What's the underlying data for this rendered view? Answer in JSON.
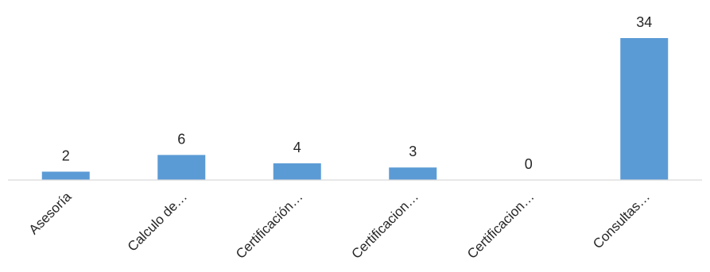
{
  "chart_data": {
    "type": "bar",
    "categories": [
      "Asesoría",
      "Calculo de…",
      "Certificación…",
      "Certificacion…",
      "Certificacion…",
      "Consultas…"
    ],
    "values": [
      2,
      6,
      4,
      3,
      0,
      34
    ],
    "title": "",
    "xlabel": "",
    "ylabel": "",
    "ylim": [
      0,
      34
    ],
    "grid": false,
    "legend": "none",
    "data_labels": true,
    "colors": {
      "bar": "#5b9bd5",
      "axis": "#d9d9d9",
      "text": "#262626"
    }
  }
}
